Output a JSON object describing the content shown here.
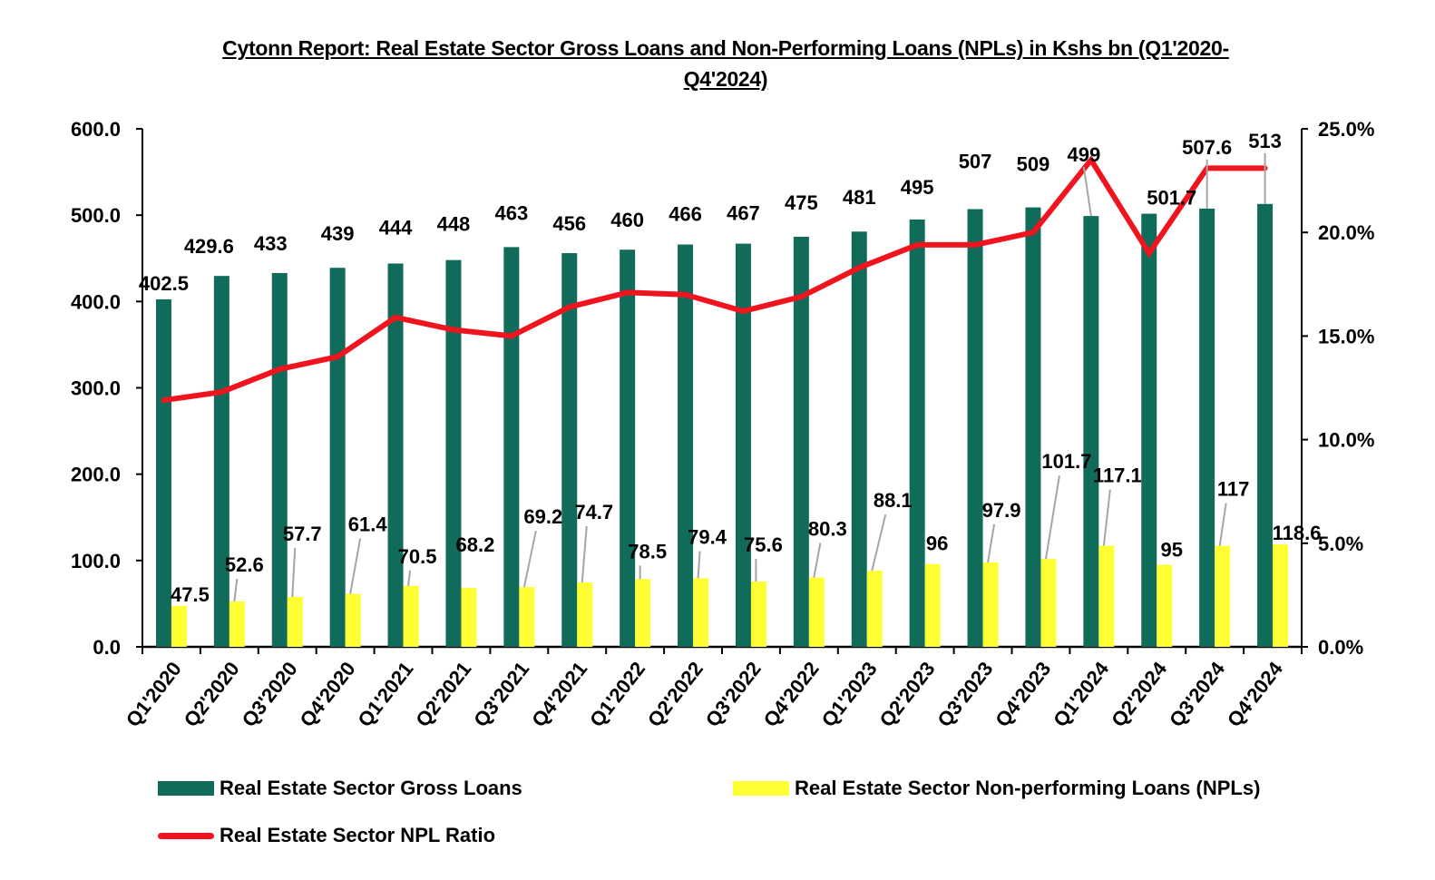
{
  "chart_data": {
    "type": "bar",
    "title": "Cytonn Report: Real Estate Sector Gross Loans and Non-Performing Loans (NPLs) in Kshs bn (Q1'2020-Q4'2024)",
    "title_lines": [
      "Cytonn Report: Real Estate Sector Gross Loans and Non-Performing Loans (NPLs) in Kshs bn (Q1'2020-",
      "Q4'2024)"
    ],
    "categories": [
      "Q1'2020",
      "Q2'2020",
      "Q3'2020",
      "Q4'2020",
      "Q1'2021",
      "Q2'2021",
      "Q3'2021",
      "Q4'2021",
      "Q1'2022",
      "Q2'2022",
      "Q3'2022",
      "Q4'2022",
      "Q1'2023",
      "Q2'2023",
      "Q3'2023",
      "Q4'2023",
      "Q1'2024",
      "Q2'2024",
      "Q3'2024",
      "Q4'2024"
    ],
    "series": [
      {
        "name": "Real Estate Sector Gross Loans",
        "type": "bar",
        "axis": "left",
        "color": "#116b5a",
        "values": [
          402.5,
          429.6,
          433,
          439,
          444,
          448,
          463,
          456,
          460,
          466,
          467,
          475,
          481,
          495,
          507,
          509,
          499,
          501.7,
          507.6,
          513
        ],
        "labels": [
          "402.5",
          "429.6",
          "433",
          "439",
          "444",
          "448",
          "463",
          "456",
          "460",
          "466",
          "467",
          "475",
          "481",
          "495",
          "507",
          "509",
          "499",
          "501.7",
          "507.6",
          "513"
        ]
      },
      {
        "name": "Real Estate Sector Non-performing Loans (NPLs)",
        "type": "bar",
        "axis": "left",
        "color": "#ffff33",
        "values": [
          47.5,
          52.6,
          57.7,
          61.4,
          70.5,
          68.2,
          69.2,
          74.7,
          78.5,
          79.4,
          75.6,
          80.3,
          88.1,
          96,
          97.9,
          101.7,
          117.1,
          95,
          117,
          118.6
        ],
        "labels": [
          "47.5",
          "52.6",
          "57.7",
          "61.4",
          "70.5",
          "68.2",
          "69.2",
          "74.7",
          "78.5",
          "79.4",
          "75.6",
          "80.3",
          "88.1",
          "96",
          "97.9",
          "101.7",
          "117.1",
          "95",
          "117",
          "118.6"
        ]
      },
      {
        "name": "Real Estate Sector NPL Ratio",
        "type": "line",
        "axis": "right",
        "color": "#f0141e",
        "values": [
          11.9,
          12.3,
          13.4,
          14.0,
          15.9,
          15.3,
          15.0,
          16.4,
          17.1,
          17.0,
          16.2,
          16.9,
          18.3,
          19.4,
          19.4,
          20.0,
          23.5,
          19.0,
          23.1,
          23.1
        ]
      }
    ],
    "left_axis": {
      "min": 0,
      "max": 600,
      "ticks": [
        "0.0",
        "100.0",
        "200.0",
        "300.0",
        "400.0",
        "500.0",
        "600.0"
      ]
    },
    "right_axis": {
      "min": 0,
      "max": 25,
      "unit": "%",
      "ticks": [
        "0.0%",
        "5.0%",
        "10.0%",
        "15.0%",
        "20.0%",
        "25.0%"
      ]
    },
    "xlabel": "",
    "ylabel": "",
    "grid": false,
    "legend_position": "bottom"
  }
}
